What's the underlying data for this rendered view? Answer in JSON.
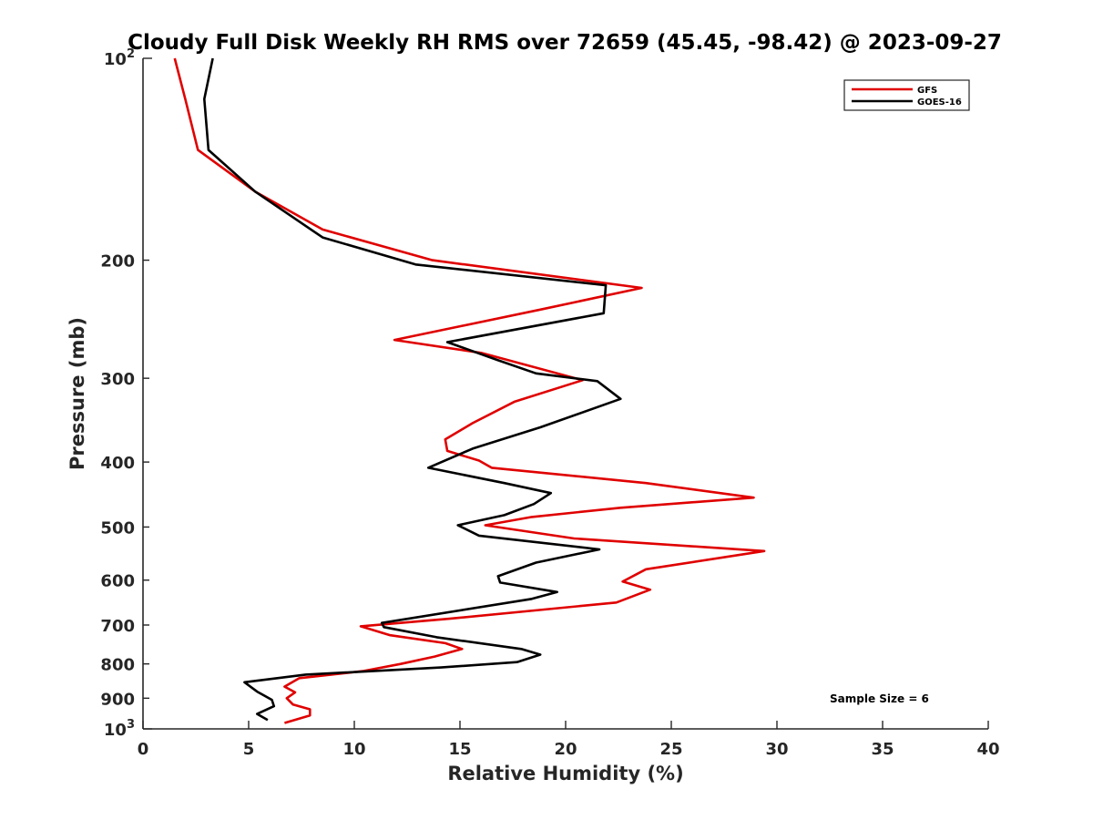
{
  "chart_data": {
    "type": "line",
    "title": "Cloudy Full Disk Weekly RH RMS over 72659 (45.45, -98.42) @ 2023-09-27",
    "xlabel": "Relative Humidity (%)",
    "ylabel": "Pressure (mb)",
    "xlim": [
      0,
      40
    ],
    "ylim": [
      100,
      1000
    ],
    "y_scale": "log",
    "y_reversed": true,
    "x_ticks": [
      0,
      5,
      10,
      15,
      20,
      25,
      30,
      35,
      40
    ],
    "y_ticks": [
      {
        "value": 100,
        "base": "10",
        "exp": "2"
      },
      {
        "value": 200,
        "label": "200"
      },
      {
        "value": 300,
        "label": "300"
      },
      {
        "value": 400,
        "label": "400"
      },
      {
        "value": 500,
        "label": "500"
      },
      {
        "value": 600,
        "label": "600"
      },
      {
        "value": 700,
        "label": "700"
      },
      {
        "value": 800,
        "label": "800"
      },
      {
        "value": 900,
        "label": "900"
      },
      {
        "value": 1000,
        "base": "10",
        "exp": "3"
      }
    ],
    "grid": false,
    "legend_position": "top-right",
    "annotation": "Sample Size = 6",
    "series": [
      {
        "name": "GFS",
        "color": "#e00000",
        "points": [
          [
            1.5,
            100
          ],
          [
            2.0,
            115
          ],
          [
            2.6,
            137
          ],
          [
            5.3,
            158
          ],
          [
            8.5,
            180
          ],
          [
            13.7,
            200
          ],
          [
            23.6,
            220
          ],
          [
            18.8,
            237
          ],
          [
            11.9,
            263
          ],
          [
            16.0,
            275
          ],
          [
            20.8,
            302
          ],
          [
            17.6,
            325
          ],
          [
            15.6,
            350
          ],
          [
            14.3,
            370
          ],
          [
            14.4,
            385
          ],
          [
            15.9,
            398
          ],
          [
            16.5,
            408
          ],
          [
            23.8,
            430
          ],
          [
            28.9,
            452
          ],
          [
            22.6,
            468
          ],
          [
            18.4,
            483
          ],
          [
            16.2,
            497
          ],
          [
            20.4,
            520
          ],
          [
            29.4,
            543
          ],
          [
            23.8,
            578
          ],
          [
            22.7,
            603
          ],
          [
            24.0,
            620
          ],
          [
            22.4,
            648
          ],
          [
            14.5,
            685
          ],
          [
            10.3,
            703
          ],
          [
            11.7,
            725
          ],
          [
            14.3,
            745
          ],
          [
            15.1,
            760
          ],
          [
            13.8,
            780
          ],
          [
            12.2,
            800
          ],
          [
            10.4,
            820
          ],
          [
            7.4,
            840
          ],
          [
            6.7,
            865
          ],
          [
            7.2,
            882
          ],
          [
            6.8,
            900
          ],
          [
            7.1,
            920
          ],
          [
            7.9,
            935
          ],
          [
            7.9,
            955
          ],
          [
            6.7,
            980
          ]
        ]
      },
      {
        "name": "GOES-16",
        "color": "#000000",
        "points": [
          [
            3.3,
            100
          ],
          [
            2.9,
            115
          ],
          [
            3.1,
            137
          ],
          [
            5.3,
            158
          ],
          [
            8.5,
            185
          ],
          [
            12.9,
            203
          ],
          [
            21.9,
            218
          ],
          [
            21.8,
            240
          ],
          [
            14.4,
            265
          ],
          [
            16.8,
            282
          ],
          [
            18.6,
            295
          ],
          [
            21.5,
            303
          ],
          [
            22.6,
            322
          ],
          [
            18.8,
            355
          ],
          [
            15.6,
            382
          ],
          [
            13.5,
            408
          ],
          [
            17.1,
            430
          ],
          [
            19.3,
            445
          ],
          [
            18.5,
            462
          ],
          [
            17.1,
            480
          ],
          [
            14.9,
            497
          ],
          [
            15.9,
            515
          ],
          [
            21.6,
            540
          ],
          [
            18.6,
            565
          ],
          [
            16.8,
            592
          ],
          [
            16.9,
            605
          ],
          [
            19.6,
            625
          ],
          [
            18.4,
            640
          ],
          [
            11.3,
            695
          ],
          [
            11.4,
            705
          ],
          [
            13.9,
            730
          ],
          [
            17.9,
            760
          ],
          [
            18.8,
            775
          ],
          [
            17.7,
            795
          ],
          [
            14.1,
            810
          ],
          [
            7.7,
            830
          ],
          [
            4.8,
            852
          ],
          [
            5.4,
            880
          ],
          [
            6.1,
            905
          ],
          [
            6.2,
            925
          ],
          [
            5.4,
            950
          ],
          [
            5.9,
            970
          ]
        ]
      }
    ]
  }
}
